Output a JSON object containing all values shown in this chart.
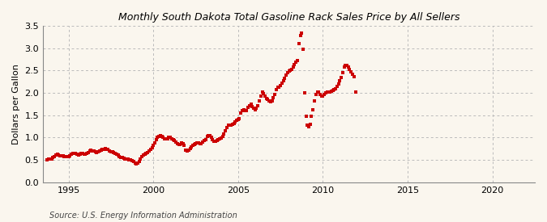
{
  "title": "Monthly South Dakota Total Gasoline Rack Sales Price by All Sellers",
  "ylabel": "Dollars per Gallon",
  "source": "Source: U.S. Energy Information Administration",
  "background_color": "#faf6ee",
  "marker_color": "#cc0000",
  "grid_color": "#bbbbbb",
  "xlim": [
    1993.5,
    2022.5
  ],
  "ylim": [
    0.0,
    3.5
  ],
  "yticks": [
    0.0,
    0.5,
    1.0,
    1.5,
    2.0,
    2.5,
    3.0,
    3.5
  ],
  "xticks": [
    1995,
    2000,
    2005,
    2010,
    2015,
    2020
  ],
  "data": [
    [
      1993.75,
      0.5
    ],
    [
      1993.83,
      0.52
    ],
    [
      1993.92,
      0.53
    ],
    [
      1994.0,
      0.52
    ],
    [
      1994.08,
      0.55
    ],
    [
      1994.17,
      0.58
    ],
    [
      1994.25,
      0.61
    ],
    [
      1994.33,
      0.63
    ],
    [
      1994.42,
      0.62
    ],
    [
      1994.5,
      0.6
    ],
    [
      1994.58,
      0.6
    ],
    [
      1994.67,
      0.59
    ],
    [
      1994.75,
      0.58
    ],
    [
      1994.83,
      0.57
    ],
    [
      1994.92,
      0.57
    ],
    [
      1995.0,
      0.58
    ],
    [
      1995.08,
      0.6
    ],
    [
      1995.17,
      0.63
    ],
    [
      1995.25,
      0.65
    ],
    [
      1995.33,
      0.65
    ],
    [
      1995.42,
      0.64
    ],
    [
      1995.5,
      0.63
    ],
    [
      1995.58,
      0.62
    ],
    [
      1995.67,
      0.63
    ],
    [
      1995.75,
      0.65
    ],
    [
      1995.83,
      0.65
    ],
    [
      1995.92,
      0.63
    ],
    [
      1996.0,
      0.63
    ],
    [
      1996.08,
      0.65
    ],
    [
      1996.17,
      0.67
    ],
    [
      1996.25,
      0.7
    ],
    [
      1996.33,
      0.72
    ],
    [
      1996.42,
      0.71
    ],
    [
      1996.5,
      0.7
    ],
    [
      1996.58,
      0.68
    ],
    [
      1996.67,
      0.67
    ],
    [
      1996.75,
      0.68
    ],
    [
      1996.83,
      0.7
    ],
    [
      1996.92,
      0.72
    ],
    [
      1997.0,
      0.73
    ],
    [
      1997.08,
      0.74
    ],
    [
      1997.17,
      0.75
    ],
    [
      1997.25,
      0.74
    ],
    [
      1997.33,
      0.73
    ],
    [
      1997.42,
      0.71
    ],
    [
      1997.5,
      0.69
    ],
    [
      1997.58,
      0.68
    ],
    [
      1997.67,
      0.66
    ],
    [
      1997.75,
      0.65
    ],
    [
      1997.83,
      0.63
    ],
    [
      1997.92,
      0.61
    ],
    [
      1998.0,
      0.58
    ],
    [
      1998.08,
      0.56
    ],
    [
      1998.17,
      0.55
    ],
    [
      1998.25,
      0.54
    ],
    [
      1998.33,
      0.53
    ],
    [
      1998.42,
      0.52
    ],
    [
      1998.5,
      0.52
    ],
    [
      1998.58,
      0.51
    ],
    [
      1998.67,
      0.5
    ],
    [
      1998.75,
      0.49
    ],
    [
      1998.83,
      0.47
    ],
    [
      1998.92,
      0.44
    ],
    [
      1999.0,
      0.42
    ],
    [
      1999.08,
      0.44
    ],
    [
      1999.17,
      0.47
    ],
    [
      1999.25,
      0.52
    ],
    [
      1999.33,
      0.57
    ],
    [
      1999.42,
      0.61
    ],
    [
      1999.5,
      0.63
    ],
    [
      1999.58,
      0.65
    ],
    [
      1999.67,
      0.67
    ],
    [
      1999.75,
      0.7
    ],
    [
      1999.83,
      0.74
    ],
    [
      1999.92,
      0.78
    ],
    [
      2000.0,
      0.83
    ],
    [
      2000.08,
      0.88
    ],
    [
      2000.17,
      0.95
    ],
    [
      2000.25,
      1.0
    ],
    [
      2000.33,
      1.03
    ],
    [
      2000.42,
      1.05
    ],
    [
      2000.5,
      1.02
    ],
    [
      2000.58,
      1.0
    ],
    [
      2000.67,
      0.98
    ],
    [
      2000.75,
      0.97
    ],
    [
      2000.83,
      0.98
    ],
    [
      2000.92,
      1.0
    ],
    [
      2001.0,
      1.0
    ],
    [
      2001.08,
      0.98
    ],
    [
      2001.17,
      0.96
    ],
    [
      2001.25,
      0.93
    ],
    [
      2001.33,
      0.9
    ],
    [
      2001.42,
      0.87
    ],
    [
      2001.5,
      0.85
    ],
    [
      2001.58,
      0.85
    ],
    [
      2001.67,
      0.88
    ],
    [
      2001.75,
      0.87
    ],
    [
      2001.83,
      0.82
    ],
    [
      2001.92,
      0.72
    ],
    [
      2002.0,
      0.7
    ],
    [
      2002.08,
      0.72
    ],
    [
      2002.17,
      0.75
    ],
    [
      2002.25,
      0.8
    ],
    [
      2002.33,
      0.83
    ],
    [
      2002.42,
      0.85
    ],
    [
      2002.5,
      0.87
    ],
    [
      2002.58,
      0.88
    ],
    [
      2002.67,
      0.88
    ],
    [
      2002.75,
      0.87
    ],
    [
      2002.83,
      0.87
    ],
    [
      2002.92,
      0.9
    ],
    [
      2003.0,
      0.93
    ],
    [
      2003.08,
      0.96
    ],
    [
      2003.17,
      1.02
    ],
    [
      2003.25,
      1.05
    ],
    [
      2003.33,
      1.05
    ],
    [
      2003.42,
      1.0
    ],
    [
      2003.5,
      0.95
    ],
    [
      2003.58,
      0.92
    ],
    [
      2003.67,
      0.92
    ],
    [
      2003.75,
      0.93
    ],
    [
      2003.83,
      0.95
    ],
    [
      2003.92,
      0.97
    ],
    [
      2004.0,
      0.99
    ],
    [
      2004.08,
      1.02
    ],
    [
      2004.17,
      1.08
    ],
    [
      2004.25,
      1.15
    ],
    [
      2004.33,
      1.22
    ],
    [
      2004.42,
      1.28
    ],
    [
      2004.5,
      1.28
    ],
    [
      2004.58,
      1.28
    ],
    [
      2004.67,
      1.3
    ],
    [
      2004.75,
      1.32
    ],
    [
      2004.83,
      1.35
    ],
    [
      2004.92,
      1.38
    ],
    [
      2005.0,
      1.4
    ],
    [
      2005.08,
      1.42
    ],
    [
      2005.17,
      1.55
    ],
    [
      2005.25,
      1.6
    ],
    [
      2005.33,
      1.63
    ],
    [
      2005.42,
      1.6
    ],
    [
      2005.5,
      1.6
    ],
    [
      2005.58,
      1.68
    ],
    [
      2005.67,
      1.72
    ],
    [
      2005.75,
      1.75
    ],
    [
      2005.83,
      1.7
    ],
    [
      2005.92,
      1.65
    ],
    [
      2006.0,
      1.62
    ],
    [
      2006.08,
      1.65
    ],
    [
      2006.17,
      1.72
    ],
    [
      2006.25,
      1.82
    ],
    [
      2006.33,
      1.93
    ],
    [
      2006.42,
      2.02
    ],
    [
      2006.5,
      1.98
    ],
    [
      2006.58,
      1.93
    ],
    [
      2006.67,
      1.88
    ],
    [
      2006.75,
      1.85
    ],
    [
      2006.83,
      1.82
    ],
    [
      2006.92,
      1.8
    ],
    [
      2007.0,
      1.82
    ],
    [
      2007.08,
      1.9
    ],
    [
      2007.17,
      1.97
    ],
    [
      2007.25,
      2.08
    ],
    [
      2007.33,
      2.13
    ],
    [
      2007.42,
      2.12
    ],
    [
      2007.5,
      2.17
    ],
    [
      2007.58,
      2.22
    ],
    [
      2007.67,
      2.27
    ],
    [
      2007.75,
      2.32
    ],
    [
      2007.83,
      2.4
    ],
    [
      2007.92,
      2.45
    ],
    [
      2008.0,
      2.48
    ],
    [
      2008.08,
      2.5
    ],
    [
      2008.17,
      2.52
    ],
    [
      2008.25,
      2.57
    ],
    [
      2008.33,
      2.63
    ],
    [
      2008.42,
      2.68
    ],
    [
      2008.5,
      2.73
    ],
    [
      2008.58,
      3.1
    ],
    [
      2008.67,
      3.28
    ],
    [
      2008.75,
      3.33
    ],
    [
      2008.83,
      2.97
    ],
    [
      2008.92,
      2.0
    ],
    [
      2009.0,
      1.48
    ],
    [
      2009.08,
      1.28
    ],
    [
      2009.17,
      1.25
    ],
    [
      2009.25,
      1.3
    ],
    [
      2009.33,
      1.48
    ],
    [
      2009.42,
      1.62
    ],
    [
      2009.5,
      1.82
    ],
    [
      2009.58,
      1.97
    ],
    [
      2009.67,
      2.02
    ],
    [
      2009.75,
      2.02
    ],
    [
      2009.83,
      1.97
    ],
    [
      2009.92,
      1.93
    ],
    [
      2010.0,
      1.93
    ],
    [
      2010.08,
      1.97
    ],
    [
      2010.17,
      2.0
    ],
    [
      2010.25,
      2.02
    ],
    [
      2010.33,
      2.02
    ],
    [
      2010.42,
      2.02
    ],
    [
      2010.5,
      2.03
    ],
    [
      2010.58,
      2.05
    ],
    [
      2010.67,
      2.08
    ],
    [
      2010.75,
      2.1
    ],
    [
      2010.83,
      2.15
    ],
    [
      2010.92,
      2.2
    ],
    [
      2011.0,
      2.27
    ],
    [
      2011.08,
      2.35
    ],
    [
      2011.17,
      2.45
    ],
    [
      2011.25,
      2.57
    ],
    [
      2011.33,
      2.62
    ],
    [
      2011.42,
      2.62
    ],
    [
      2011.5,
      2.57
    ],
    [
      2011.58,
      2.52
    ],
    [
      2011.67,
      2.47
    ],
    [
      2011.75,
      2.42
    ],
    [
      2011.83,
      2.37
    ],
    [
      2011.92,
      2.02
    ]
  ]
}
